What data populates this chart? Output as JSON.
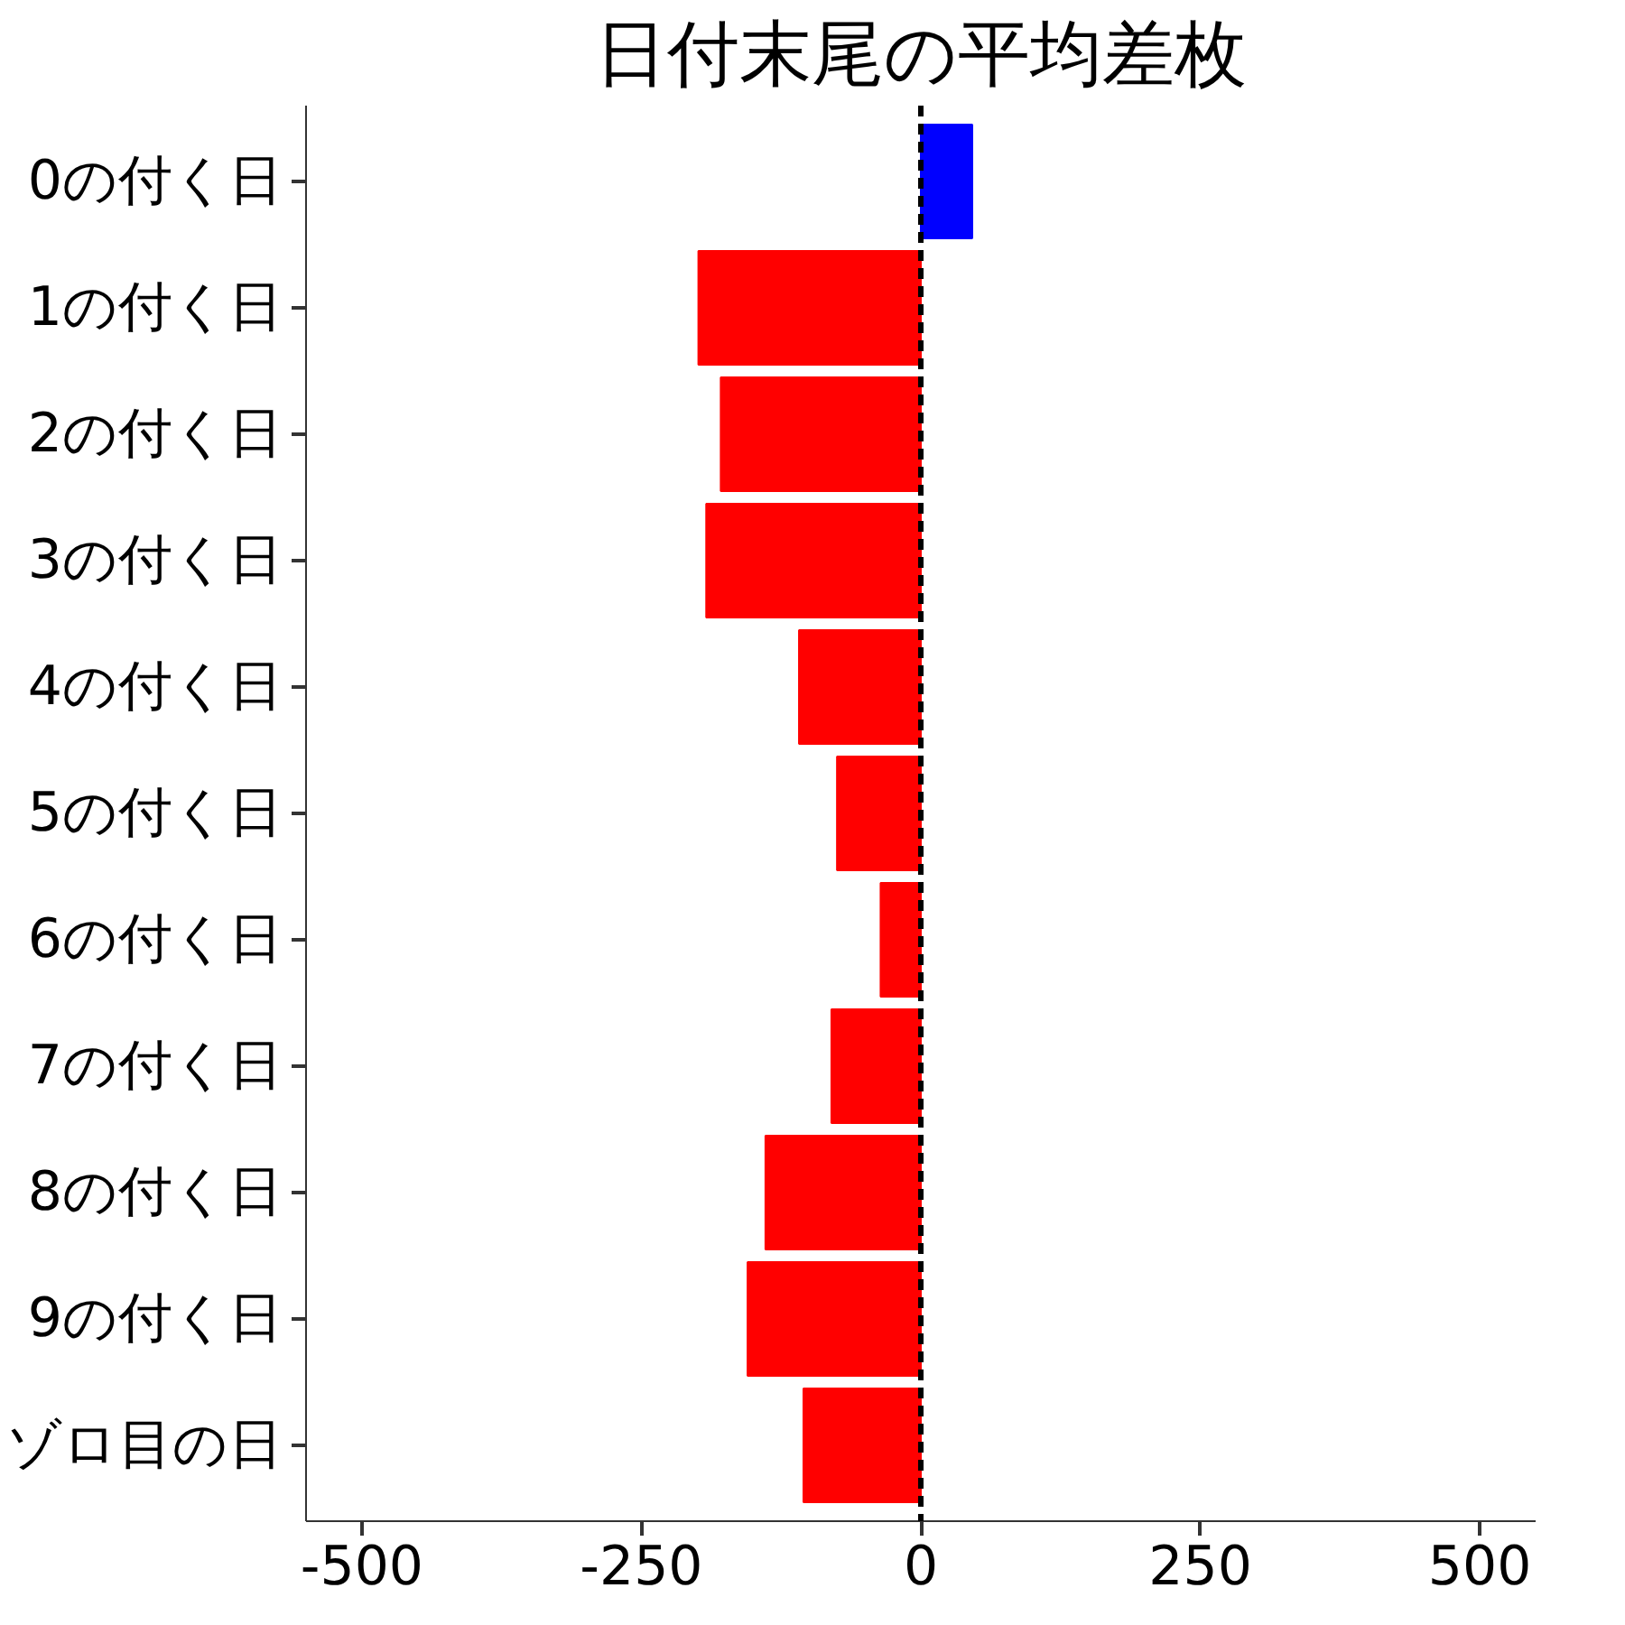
{
  "chart_data": {
    "type": "bar",
    "orientation": "horizontal",
    "title": "日付末尾の平均差枚",
    "categories": [
      "0の付く日",
      "1の付く日",
      "2の付く日",
      "3の付く日",
      "4の付く日",
      "5の付く日",
      "6の付く日",
      "7の付く日",
      "8の付く日",
      "9の付く日",
      "ゾロ目の日"
    ],
    "values": [
      46,
      -199,
      -179,
      -192,
      -109,
      -75,
      -36,
      -80,
      -139,
      -155,
      -105
    ],
    "colors": [
      "#0000ff",
      "#ff0000",
      "#ff0000",
      "#ff0000",
      "#ff0000",
      "#ff0000",
      "#ff0000",
      "#ff0000",
      "#ff0000",
      "#ff0000",
      "#ff0000"
    ],
    "xlim": [
      -550,
      550
    ],
    "xticks": [
      -500,
      -250,
      0,
      250,
      500
    ],
    "ref_lines": [
      {
        "axis": "x",
        "value": 0,
        "color": "#000000",
        "line_style": "dashed"
      }
    ],
    "grid": false
  }
}
